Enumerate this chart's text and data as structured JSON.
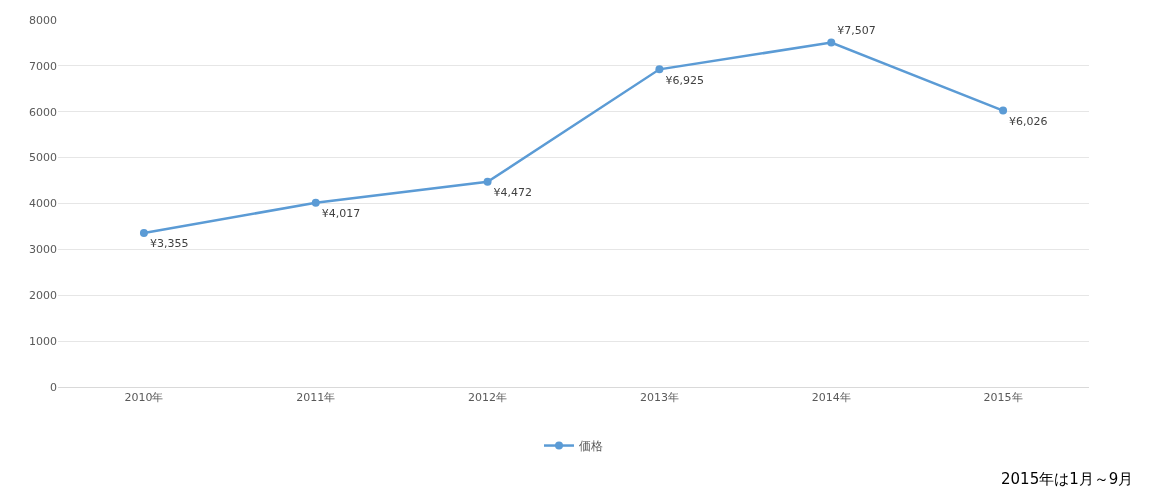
{
  "chart_data": {
    "type": "line",
    "categories": [
      "2010年",
      "2011年",
      "2012年",
      "2013年",
      "2014年",
      "2015年"
    ],
    "series": [
      {
        "name": "価格",
        "color": "#5b9bd5",
        "values": [
          3355,
          4017,
          4472,
          6925,
          7507,
          6026
        ],
        "value_labels": [
          "¥3,355",
          "¥4,017",
          "¥4,472",
          "¥6,925",
          "¥7,507",
          "¥6,026"
        ]
      }
    ],
    "ylim": [
      0,
      8000
    ],
    "yticks": [
      0,
      1000,
      2000,
      3000,
      4000,
      5000,
      6000,
      7000,
      8000
    ],
    "grid": "y",
    "legend": "bottom",
    "marker": "circle",
    "line_style": "solid",
    "annotations": [
      "2015年は1月～9月"
    ]
  }
}
